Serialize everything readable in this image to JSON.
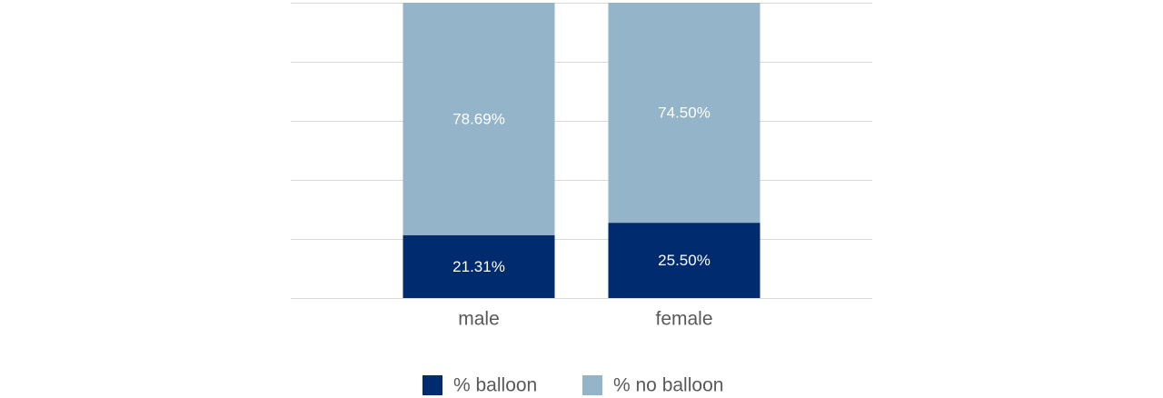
{
  "chart_data": {
    "type": "bar",
    "stacked": true,
    "categories": [
      "male",
      "female"
    ],
    "series": [
      {
        "name": "% balloon",
        "values": [
          21.31,
          25.5
        ],
        "labels": [
          "21.31%",
          "25.50%"
        ],
        "color": "#002b6e"
      },
      {
        "name": "% no balloon",
        "values": [
          78.69,
          74.5
        ],
        "labels": [
          "78.69%",
          "74.50%"
        ],
        "color": "#94b5c9"
      }
    ],
    "ylim": [
      0,
      100
    ],
    "grid": true,
    "grid_color": "#d9d9d9",
    "legend_position": "bottom"
  }
}
